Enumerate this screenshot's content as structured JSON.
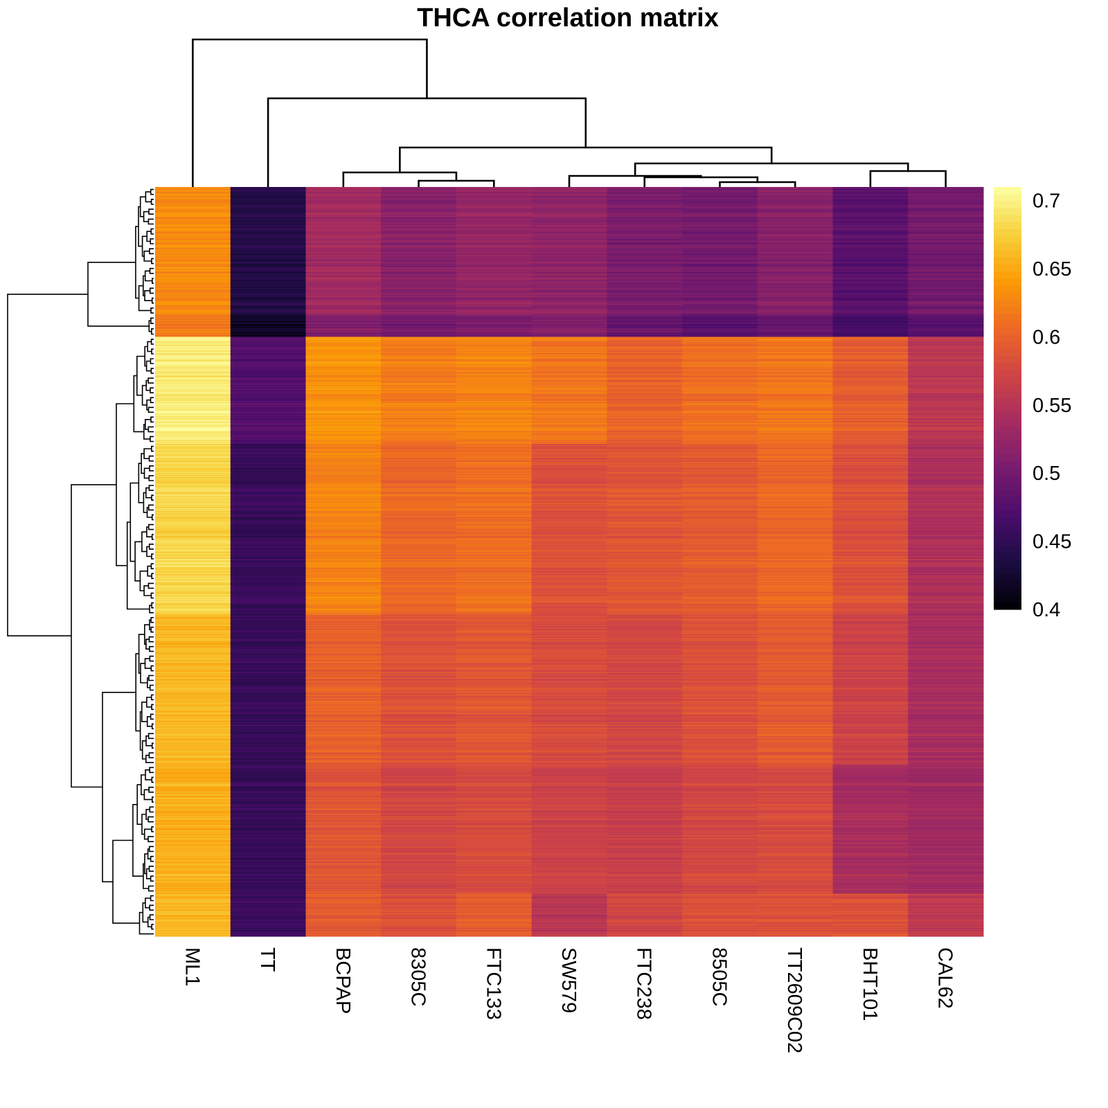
{
  "chart_data": {
    "type": "heatmap",
    "title": "THCA correlation matrix",
    "columns": [
      "ML1",
      "TT",
      "BCPAP",
      "8305C",
      "FTC133",
      "SW579",
      "FTC238",
      "8505C",
      "TT2609C02",
      "BHT101",
      "CAL62"
    ],
    "row_labels_shown": false,
    "color_scale": {
      "name": "inferno",
      "range": [
        0.4,
        0.71
      ],
      "ticks": [
        "0.7",
        "0.65",
        "0.6",
        "0.55",
        "0.5",
        "0.45",
        "0.4"
      ],
      "tick_values": [
        0.7,
        0.65,
        0.6,
        0.55,
        0.5,
        0.45,
        0.4
      ],
      "stops": [
        "#000004",
        "#1b0c41",
        "#4a0c6b",
        "#781c6d",
        "#a52c60",
        "#cf4446",
        "#ed6925",
        "#fb9b06",
        "#f7d13d",
        "#fcffa4"
      ]
    },
    "row_groups": [
      {
        "rows": 120,
        "values": [
          0.63,
          0.44,
          0.535,
          0.515,
          0.525,
          0.52,
          0.505,
          0.5,
          0.515,
          0.48,
          0.5
        ]
      },
      {
        "rows": 20,
        "values": [
          0.62,
          0.42,
          0.51,
          0.5,
          0.505,
          0.51,
          0.49,
          0.48,
          0.49,
          0.465,
          0.48
        ]
      },
      {
        "rows": 100,
        "values": [
          0.695,
          0.475,
          0.635,
          0.62,
          0.625,
          0.615,
          0.6,
          0.61,
          0.615,
          0.595,
          0.555
        ]
      },
      {
        "rows": 160,
        "values": [
          0.68,
          0.455,
          0.625,
          0.605,
          0.61,
          0.585,
          0.59,
          0.595,
          0.605,
          0.585,
          0.545
        ]
      },
      {
        "rows": 140,
        "values": [
          0.66,
          0.455,
          0.6,
          0.585,
          0.59,
          0.58,
          0.575,
          0.585,
          0.595,
          0.57,
          0.54
        ]
      },
      {
        "rows": 120,
        "values": [
          0.655,
          0.455,
          0.59,
          0.575,
          0.58,
          0.57,
          0.565,
          0.575,
          0.58,
          0.54,
          0.535
        ]
      },
      {
        "rows": 40,
        "values": [
          0.66,
          0.46,
          0.595,
          0.585,
          0.595,
          0.555,
          0.575,
          0.585,
          0.585,
          0.585,
          0.56
        ]
      }
    ],
    "column_dendrogram": "ML1 joins last; TT joins cluster of remaining nine; {BCPAP,(8305C,FTC133)} and {SW579,(FTC238,(8505C,TT2609C02)),(BHT101,CAL62)}",
    "legend_placement": "right",
    "grid": false
  }
}
